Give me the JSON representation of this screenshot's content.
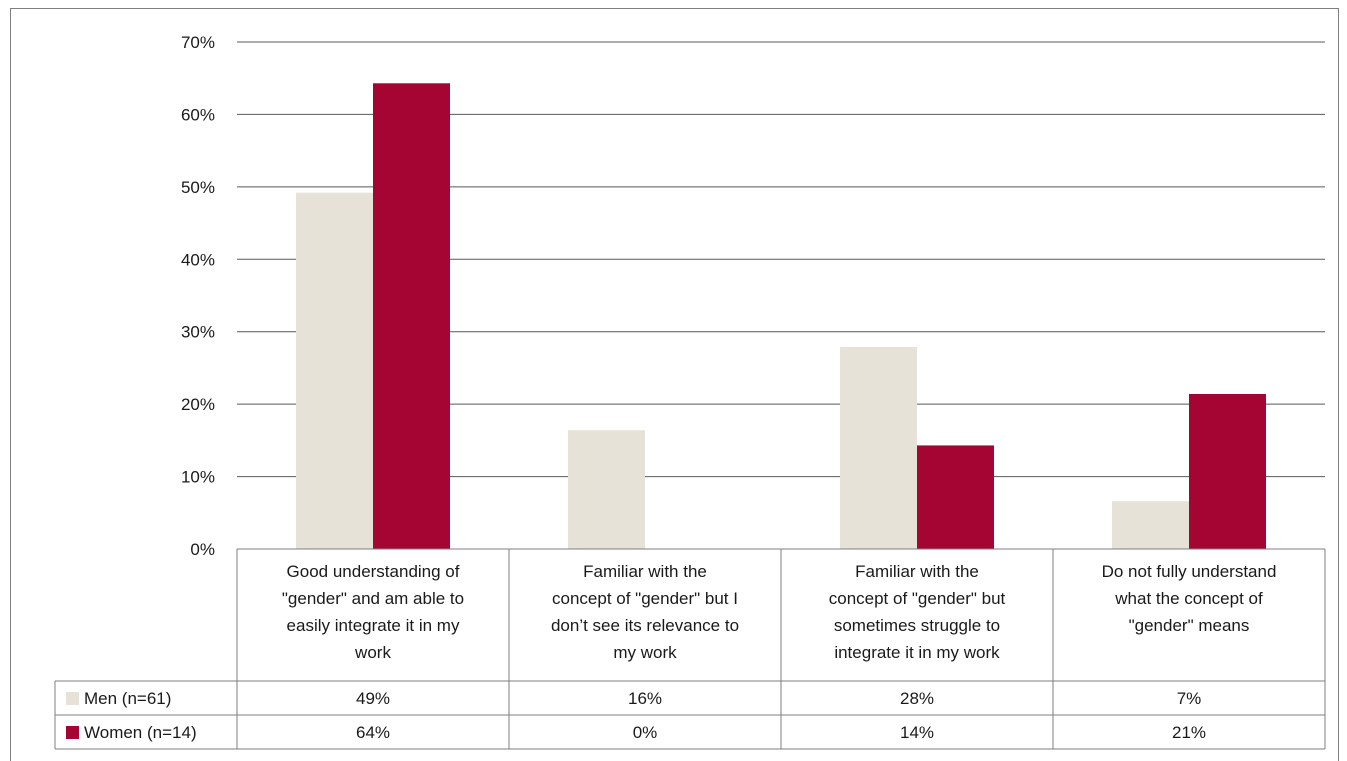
{
  "colors": {
    "men": "#E6E2D7",
    "women": "#A50533",
    "grid": "#595959",
    "table_border": "#7f7f7f"
  },
  "chart_data": {
    "type": "bar",
    "ylim": [
      0,
      70
    ],
    "yticks": [
      0,
      10,
      20,
      30,
      40,
      50,
      60,
      70
    ],
    "ytick_labels": [
      "0%",
      "10%",
      "20%",
      "30%",
      "40%",
      "50%",
      "60%",
      "70%"
    ],
    "grid": true,
    "legend": "table-rows",
    "categories": [
      [
        "Good understanding of",
        "\"gender\" and am able to",
        "easily integrate it in my",
        "work"
      ],
      [
        "Familiar with the",
        "concept of \"gender\" but I",
        "don’t see its relevance to",
        "my work"
      ],
      [
        "Familiar with the",
        "concept of \"gender\" but",
        "sometimes struggle to",
        "integrate it in my work"
      ],
      [
        "Do not fully understand",
        "what the concept of",
        "\"gender\" means"
      ]
    ],
    "series": [
      {
        "name": "Men (n=61)",
        "values": [
          49.2,
          16.4,
          27.9,
          6.6
        ],
        "labels": [
          "49%",
          "16%",
          "28%",
          "7%"
        ]
      },
      {
        "name": "Women (n=14)",
        "values": [
          64.3,
          0,
          14.3,
          21.4
        ],
        "labels": [
          "64%",
          "0%",
          "14%",
          "21%"
        ]
      }
    ]
  }
}
